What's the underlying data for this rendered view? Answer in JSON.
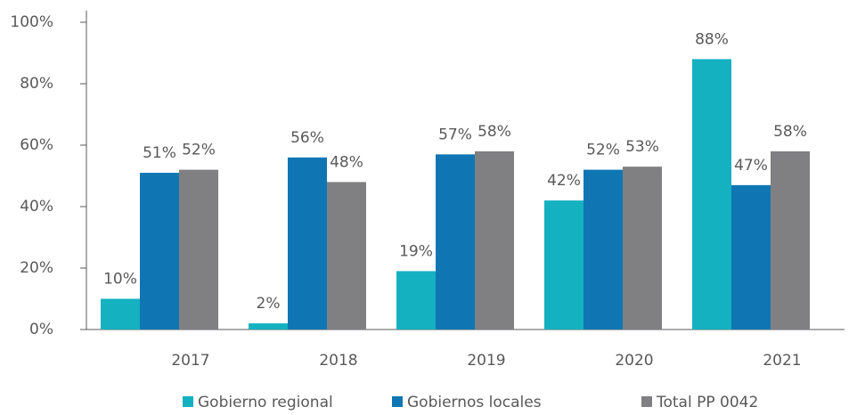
{
  "chart_data": {
    "type": "bar",
    "categories": [
      "2017",
      "2018",
      "2019",
      "2020",
      "2021"
    ],
    "series": [
      {
        "name": "Gobierno regional",
        "color": "#14b1c0",
        "values": [
          10,
          2,
          19,
          42,
          88
        ],
        "value_labels": [
          "10%",
          "2%",
          "19%",
          "42%",
          "88%"
        ]
      },
      {
        "name": "Gobiernos locales",
        "color": "#0f76b3",
        "values": [
          51,
          56,
          57,
          52,
          47
        ],
        "value_labels": [
          "51%",
          "56%",
          "57%",
          "52%",
          "47%"
        ]
      },
      {
        "name": "Total PP 0042",
        "color": "#808083",
        "values": [
          52,
          48,
          58,
          53,
          58
        ],
        "value_labels": [
          "52%",
          "48%",
          "58%",
          "53%",
          "58%"
        ]
      }
    ],
    "ylim": [
      0,
      100
    ],
    "yticks": [
      {
        "value": 0,
        "label": "0%"
      },
      {
        "value": 20,
        "label": "20%"
      },
      {
        "value": 40,
        "label": "40%"
      },
      {
        "value": 60,
        "label": "60%"
      },
      {
        "value": 80,
        "label": "80%"
      },
      {
        "value": 100,
        "label": "100%"
      }
    ],
    "legend": "bottom"
  }
}
